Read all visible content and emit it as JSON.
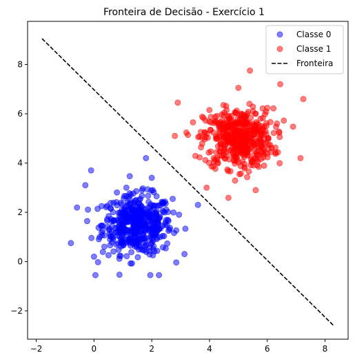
{
  "chart_data": {
    "type": "scatter",
    "title": "Fronteira de Decisão - Exercício 1",
    "xlabel": "",
    "ylabel": "",
    "xlim": [
      -2.3,
      8.8
    ],
    "ylim": [
      -3.15,
      9.75
    ],
    "xticks": [
      -2,
      0,
      2,
      4,
      6,
      8
    ],
    "yticks": [
      -2,
      0,
      2,
      4,
      6,
      8
    ],
    "xtick_labels": [
      "−2",
      "0",
      "2",
      "4",
      "6",
      "8"
    ],
    "ytick_labels": [
      "−2",
      "0",
      "2",
      "4",
      "6",
      "8"
    ],
    "grid": false,
    "legend_position": "top-right",
    "series": [
      {
        "name": "Classe 0",
        "kind": "scatter",
        "color": "#0000ff",
        "alpha": 0.5,
        "center": [
          1.5,
          1.5
        ],
        "spread": 0.6,
        "count": 500,
        "notable_points": [
          [
            -0.8,
            0.75
          ],
          [
            -0.1,
            3.7
          ],
          [
            -0.3,
            3.1
          ],
          [
            1.8,
            4.2
          ],
          [
            3.6,
            2.3
          ],
          [
            0.0,
            0.2
          ],
          [
            0.05,
            -0.55
          ],
          [
            1.95,
            -0.55
          ],
          [
            2.25,
            -0.55
          ],
          [
            2.0,
            3.4
          ]
        ]
      },
      {
        "name": "Classe 1",
        "kind": "scatter",
        "color": "#ff0000",
        "alpha": 0.5,
        "center": [
          5.0,
          5.0
        ],
        "spread": 0.6,
        "count": 500,
        "notable_points": [
          [
            5.4,
            7.75
          ],
          [
            6.45,
            7.2
          ],
          [
            7.25,
            6.6
          ],
          [
            2.9,
            6.45
          ],
          [
            3.9,
            3.0
          ],
          [
            5.6,
            2.9
          ],
          [
            5.0,
            7.05
          ],
          [
            7.15,
            4.2
          ],
          [
            2.8,
            5.1
          ]
        ]
      },
      {
        "name": "Fronteira",
        "kind": "line",
        "color": "#000000",
        "dash": "dashed",
        "x": [
          -1.8,
          8.3
        ],
        "y": [
          9.05,
          -2.6
        ]
      }
    ]
  }
}
